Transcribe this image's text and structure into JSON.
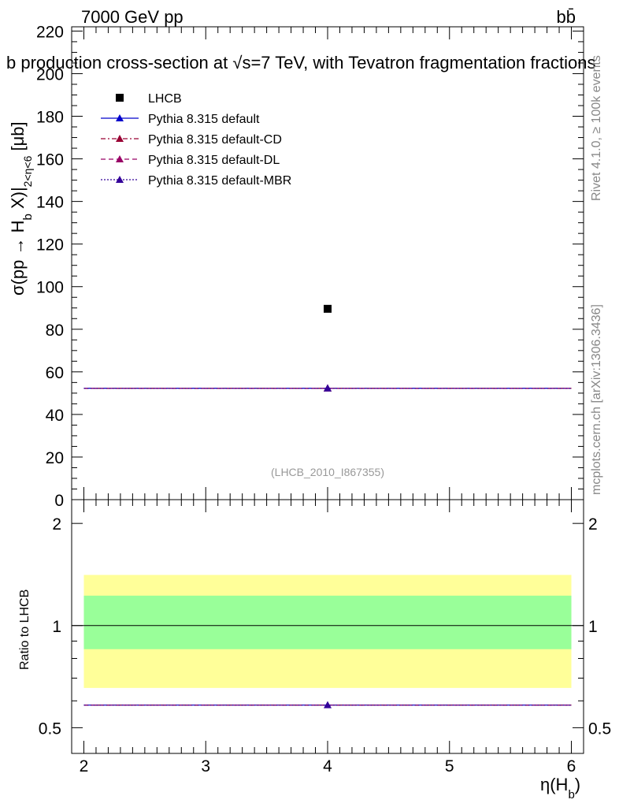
{
  "header": {
    "energy_label": "7000 GeV pp",
    "process_label": "bb̄",
    "title": "b production cross-section at √s=7 TeV, with Tevatron fragmentation fractions",
    "analysis_id": "(LHCB_2010_I867355)",
    "side_rivet": "Rivet 4.1.0, ≥ 100k events",
    "side_mcplots": "mcplots.cern.ch [arXiv:1306.3436]"
  },
  "colors": {
    "data": "#000000",
    "default": "#0000cc",
    "cd": "#990033",
    "dl": "#990066",
    "mbr": "#330099",
    "band_inner": "#99ff99",
    "band_outer": "#ffff99"
  },
  "chart_data": [
    {
      "type": "scatter",
      "panel": "main",
      "ylabel": "σ(pp → H_b X)|_{2<η<6} [μb]",
      "ylim": [
        0,
        222
      ],
      "xlim": [
        1.9,
        6.1
      ],
      "yticks": [
        0,
        20,
        40,
        60,
        80,
        100,
        120,
        140,
        160,
        180,
        200,
        220
      ],
      "legend_position": "top-left",
      "series": [
        {
          "name": "LHCB",
          "style": "data",
          "x": [
            4
          ],
          "y": [
            89.6
          ],
          "xerr": [
            [
              2,
              6
            ]
          ]
        },
        {
          "name": "Pythia 8.315 default",
          "style": "solid",
          "x": [
            4
          ],
          "y": [
            52.3
          ],
          "xerr": [
            [
              2,
              6
            ]
          ]
        },
        {
          "name": "Pythia 8.315 default-CD",
          "style": "dash-dot",
          "x": [
            4
          ],
          "y": [
            52.3
          ],
          "xerr": [
            [
              2,
              6
            ]
          ]
        },
        {
          "name": "Pythia 8.315 default-DL",
          "style": "dashed",
          "x": [
            4
          ],
          "y": [
            52.3
          ],
          "xerr": [
            [
              2,
              6
            ]
          ]
        },
        {
          "name": "Pythia 8.315 default-MBR",
          "style": "dotted",
          "x": [
            4
          ],
          "y": [
            52.3
          ],
          "xerr": [
            [
              2,
              6
            ]
          ]
        }
      ]
    },
    {
      "type": "scatter",
      "panel": "ratio",
      "ylabel": "Ratio to LHCB",
      "xlabel": "η(H_b)",
      "yscale": "log",
      "ylim": [
        0.42,
        2.35
      ],
      "yticks": [
        0.5,
        1,
        2
      ],
      "xticks": [
        2,
        3,
        4,
        5,
        6
      ],
      "reference": 1,
      "band_inner": [
        0.852,
        1.225
      ],
      "band_outer": [
        0.655,
        1.41
      ],
      "ratio_value": 0.583
    }
  ]
}
